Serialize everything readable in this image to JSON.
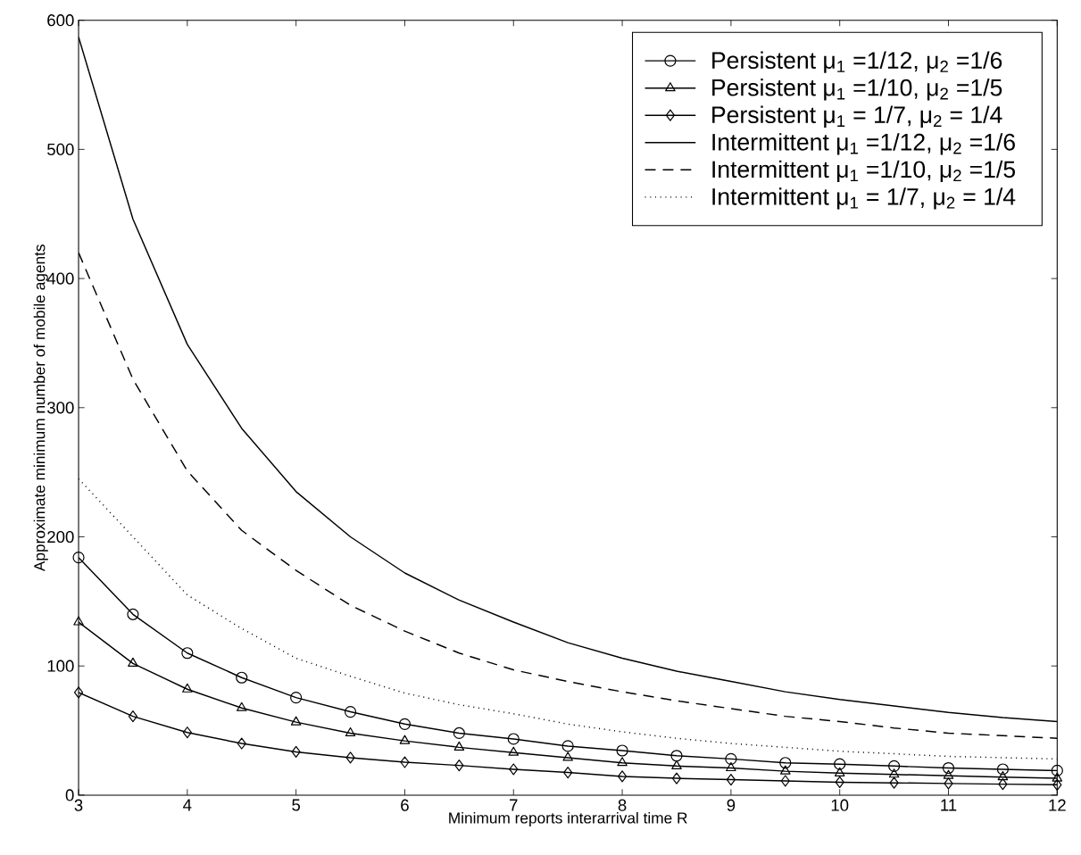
{
  "chart_data": {
    "type": "line",
    "xlabel": "Minimum reports interarrival time R",
    "ylabel": "Approximate minimum number of mobile agents",
    "x": [
      3,
      3.5,
      4,
      4.5,
      5,
      5.5,
      6,
      6.5,
      7,
      7.5,
      8,
      8.5,
      9,
      9.5,
      10,
      10.5,
      11,
      11.5,
      12
    ],
    "series": [
      {
        "name": "Persistent μ$_{1}$ =1/12, μ$_{2}$ =1/6",
        "color": "#000000",
        "marker": "circle",
        "line_style": "solid",
        "values": [
          184,
          140,
          110,
          91,
          75.5,
          64.5,
          55,
          48,
          43.5,
          38,
          34.5,
          30.5,
          28,
          25,
          24,
          22.5,
          21,
          20,
          19
        ]
      },
      {
        "name": "Persistent μ$_{1}$ =1/10, μ$_{2}$ =1/5",
        "color": "#000000",
        "marker": "triangle",
        "line_style": "solid",
        "values": [
          134,
          102,
          82,
          67.5,
          56.5,
          48,
          42,
          37,
          33,
          29,
          25,
          22.5,
          21,
          18.5,
          17,
          16,
          15,
          14,
          13
        ]
      },
      {
        "name": "Persistent μ$_{1}$ = 1/7, μ$_{2}$ = 1/4",
        "color": "#000000",
        "marker": "diamond",
        "line_style": "solid",
        "values": [
          79.5,
          61,
          48.5,
          40,
          33.5,
          29,
          25.5,
          23,
          20,
          17.5,
          14.5,
          13,
          12,
          11,
          10,
          9.5,
          9,
          8.5,
          8
        ]
      },
      {
        "name": "Intermittent μ$_{1}$ =1/12, μ$_{2}$ =1/6",
        "color": "#000000",
        "marker": "none",
        "line_style": "solid",
        "values": [
          587,
          446,
          349,
          284,
          235,
          200,
          172,
          151,
          134,
          118,
          106,
          96,
          88,
          80,
          74,
          69,
          64,
          60,
          57
        ]
      },
      {
        "name": "Intermittent μ$_{1}$ =1/10, μ$_{2}$ =1/5",
        "color": "#000000",
        "marker": "none",
        "line_style": "dashed",
        "values": [
          420,
          322,
          251,
          205,
          174,
          147,
          127,
          110,
          97,
          88,
          80,
          73,
          67,
          61,
          57,
          52,
          48,
          46,
          44
        ]
      },
      {
        "name": "Intermittent μ$_{1}$ = 1/7, μ$_{2}$ = 1/4",
        "color": "#000000",
        "marker": "none",
        "line_style": "dotted",
        "values": [
          245,
          200,
          155,
          129,
          106,
          92,
          79,
          70,
          63,
          55,
          49,
          44,
          40,
          37,
          34,
          32,
          30,
          29,
          28
        ]
      }
    ],
    "xlim": [
      3,
      12
    ],
    "ylim": [
      0,
      600
    ],
    "xticks": [
      3,
      4,
      5,
      6,
      7,
      8,
      9,
      10,
      11,
      12
    ],
    "yticks": [
      0,
      100,
      200,
      300,
      400,
      500,
      600
    ],
    "grid": false,
    "legend": "top right"
  }
}
